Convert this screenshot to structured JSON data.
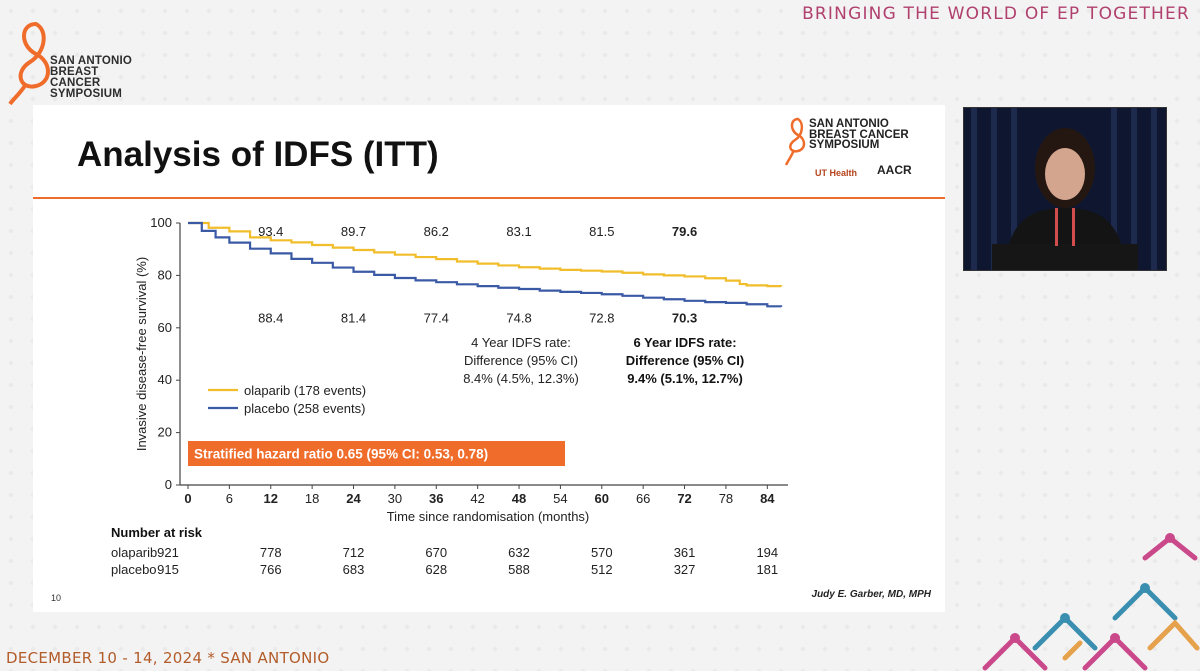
{
  "banner": "BRINGING THE WORLD OF EP TOGETHER",
  "logo": {
    "line1": "SAN ANTONIO",
    "line2": "BREAST CANCER",
    "line3": "SYMPOSIUM"
  },
  "slide": {
    "title": "Analysis of IDFS (ITT)",
    "page_number": "10",
    "author": "Judy E. Garber, MD, MPH",
    "logo_ut": "UT Health",
    "logo_aacr": "AACR"
  },
  "footer": {
    "date": "DECEMBER 10 - 14, 2024 * SAN ANTONIO"
  },
  "colors": {
    "accent": "#ef6c2b",
    "olaparib": "#f1bd2a",
    "placebo": "#3b5aa6",
    "banner": "#b0406e"
  },
  "chart_data": {
    "type": "line",
    "title": "",
    "xlabel": "Time since randomisation (months)",
    "ylabel": "Invasive disease-free survival (%)",
    "xlim": [
      0,
      87
    ],
    "ylim": [
      0,
      100
    ],
    "x_ticks": [
      0,
      6,
      12,
      18,
      24,
      30,
      36,
      42,
      48,
      54,
      60,
      66,
      72,
      78,
      84
    ],
    "x_ticks_bold": [
      0,
      12,
      24,
      36,
      48,
      60,
      72,
      84
    ],
    "y_ticks": [
      0,
      20,
      40,
      60,
      80,
      100
    ],
    "series": [
      {
        "name": "olaparib (178 events)",
        "x": [
          0,
          3,
          6,
          9,
          12,
          15,
          18,
          21,
          24,
          27,
          30,
          33,
          36,
          39,
          42,
          45,
          48,
          51,
          54,
          57,
          60,
          63,
          66,
          69,
          72,
          75,
          78,
          80,
          81,
          84,
          86
        ],
        "y": [
          100,
          98.2,
          96.8,
          94.5,
          93.4,
          92.6,
          91.6,
          90.6,
          89.7,
          88.8,
          87.9,
          87.0,
          86.2,
          85.3,
          84.5,
          83.8,
          83.1,
          82.6,
          82.1,
          81.8,
          81.5,
          81.0,
          80.4,
          80.0,
          79.6,
          78.9,
          78.0,
          76.7,
          76.2,
          75.9,
          75.8
        ]
      },
      {
        "name": "placebo (258 events)",
        "x": [
          0,
          2,
          4,
          6,
          9,
          12,
          15,
          18,
          21,
          24,
          27,
          30,
          33,
          36,
          39,
          42,
          45,
          48,
          51,
          54,
          57,
          60,
          63,
          66,
          69,
          72,
          75,
          78,
          81,
          84,
          86
        ],
        "y": [
          100,
          97.0,
          94.5,
          92.5,
          90.2,
          88.4,
          86.3,
          84.8,
          83.0,
          81.4,
          80.2,
          79.0,
          78.1,
          77.4,
          76.6,
          75.9,
          75.3,
          74.8,
          74.2,
          73.7,
          73.3,
          72.8,
          72.2,
          71.5,
          70.9,
          70.3,
          69.8,
          69.5,
          69.0,
          68.2,
          68.0
        ]
      }
    ],
    "annotations": {
      "olaparib_labels": [
        "93.4",
        "89.7",
        "86.2",
        "83.1",
        "81.5",
        "79.6"
      ],
      "placebo_labels": [
        "88.4",
        "81.4",
        "77.4",
        "74.8",
        "72.8",
        "70.3"
      ],
      "label_x": [
        12,
        24,
        36,
        48,
        60,
        72
      ],
      "four_year": {
        "line1": "4 Year IDFS rate:",
        "line2": "Difference (95% CI)",
        "line3": "8.4% (4.5%, 12.3%)"
      },
      "six_year": {
        "line1": "6 Year IDFS rate:",
        "line2": "Difference (95% CI)",
        "line3": "9.4% (5.1%, 12.7%)"
      },
      "hazard_ratio": "Stratified hazard ratio 0.65 (95% CI: 0.53, 0.78)"
    },
    "legend_position": "lower-left",
    "risk_table": {
      "header": "Number at risk",
      "rows": [
        {
          "label": "olaparib",
          "values": [
            "921",
            "778",
            "712",
            "670",
            "632",
            "570",
            "361",
            "194"
          ]
        },
        {
          "label": "placebo",
          "values": [
            "915",
            "766",
            "683",
            "628",
            "588",
            "512",
            "327",
            "181"
          ]
        }
      ]
    }
  }
}
